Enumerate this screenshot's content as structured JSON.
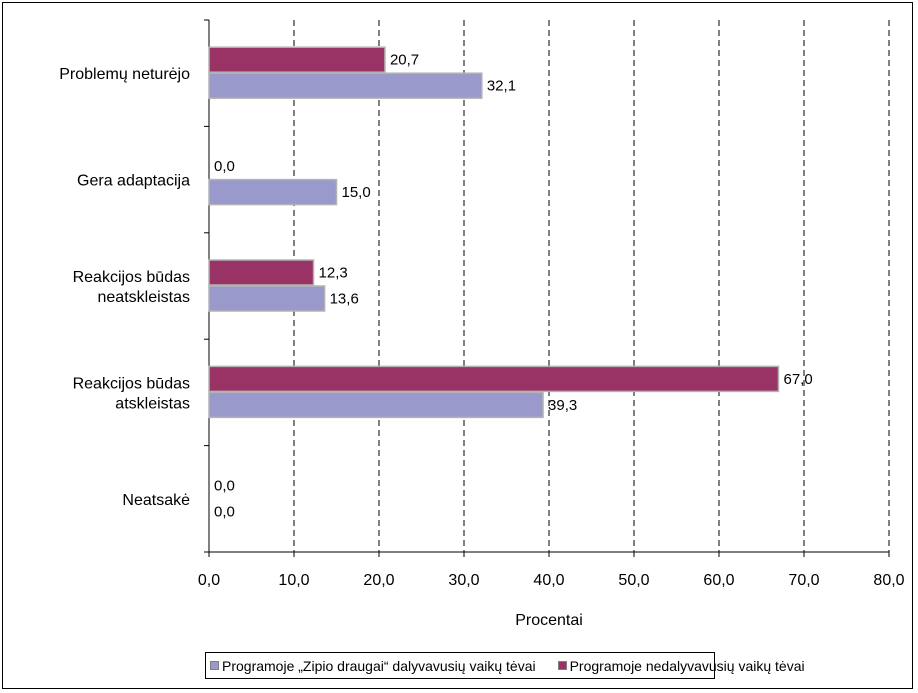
{
  "chart_data": {
    "type": "bar",
    "orientation": "horizontal",
    "categories": [
      "Problemų neturėjo",
      "Gera adaptacija",
      "Reakcijos būdas neatskleistas",
      "Reakcijos būdas atskleistas",
      "Neatsakė"
    ],
    "category_label_lines": [
      [
        "Problemų neturėjo"
      ],
      [
        "Gera adaptacija"
      ],
      [
        "Reakcijos būdas",
        "neatskleistas"
      ],
      [
        "Reakcijos būdas",
        "atskleistas"
      ],
      [
        "Neatsakė"
      ]
    ],
    "series": [
      {
        "name": "Programoje nedalyvavusių vaikų tėvai",
        "color": "#993366",
        "values": [
          20.7,
          0.0,
          12.3,
          67.0,
          0.0
        ],
        "value_labels": [
          "20,7",
          "0,0",
          "12,3",
          "67,0",
          "0,0"
        ]
      },
      {
        "name": "Programoje „Zipio draugai“ dalyvavusių vaikų tėvai",
        "color": "#9999cc",
        "values": [
          32.1,
          15.0,
          13.6,
          39.3,
          0.0
        ],
        "value_labels": [
          "32,1",
          "15,0",
          "13,6",
          "39,3",
          "0,0"
        ]
      }
    ],
    "xlabel": "Procentai",
    "ylabel": "",
    "xlim": [
      0,
      80
    ],
    "x_ticks": [
      "0,0",
      "10,0",
      "20,0",
      "30,0",
      "40,0",
      "50,0",
      "60,0",
      "70,0",
      "80,0"
    ],
    "grid": "vertical dashed",
    "legend": {
      "position": "bottom",
      "items": [
        {
          "name": "Programoje „Zipio draugai“ dalyvavusių vaikų tėvai",
          "color": "#9999cc"
        },
        {
          "name": "Programoje nedalyvavusių vaikų tėvai",
          "color": "#993366"
        }
      ]
    }
  }
}
